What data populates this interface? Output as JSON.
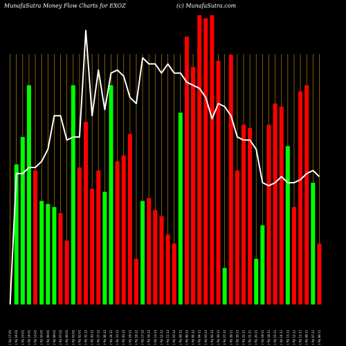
{
  "header": {
    "brand_left": "MunafaSutra  Money Flow  Charts for EXOZ",
    "brand_right": "(c) MunafaSutra.com"
  },
  "colors": {
    "background": "#000000",
    "up": "#00ff00",
    "down": "#ff0000",
    "line": "#ffffff",
    "gridline": "#b8860b"
  },
  "chart_data": {
    "type": "bar",
    "title": "",
    "xlabel": "",
    "ylabel": "",
    "ylim": [
      0,
      100
    ],
    "grid": "vertical",
    "categories": [
      "Fri 17 Jan 2025",
      "Thu 16 Jan 2025",
      "Wed 15 Jan 2025",
      "Tue 14 Jan 2025",
      "Mon 13 Jan 2025",
      "Fri 10 Jan 2025",
      "Thu 09 Jan 2025",
      "Wed 08 Jan 2025",
      "Tue 07 Jan 2025",
      "Mon 06 Jan 2025",
      "Fri 03 Jan 2025",
      "Thu 02 Jan 2025",
      "Tue 31 Dec 2024",
      "Mon 30 Dec 2024",
      "Fri 27 Dec 2024",
      "Thu 26 Dec 2024",
      "Tue 24 Dec 2024",
      "Mon 23 Dec 2024",
      "Fri 20 Dec 2024",
      "Thu 19 Dec 2024",
      "Wed 18 Dec 2024",
      "Tue 17 Dec 2024",
      "Mon 16 Dec 2024",
      "Fri 13 Dec 2024",
      "Thu 12 Dec 2024",
      "Wed 11 Dec 2024",
      "Tue 10 Dec 2024",
      "Mon 09 Dec 2024",
      "Fri 06 Dec 2024",
      "Thu 05 Dec 2024",
      "Wed 04 Dec 2024",
      "Tue 03 Dec 2024",
      "Mon 02 Dec 2024",
      "Fri 29 Nov 2024",
      "Wed 27 Nov 2024",
      "Tue 26 Nov 2024",
      "Mon 25 Nov 2024",
      "Fri 22 Nov 2024",
      "Thu 21 Nov 2024",
      "Wed 20 Nov 2024",
      "Tue 19 Nov 2024",
      "Mon 18 Nov 2024",
      "Fri 15 Nov 2024",
      "Thu 14 Nov 2024",
      "Wed 13 Nov 2024",
      "Tue 12 Nov 2024",
      "Mon 11 Nov 2024",
      "Fri 08 Nov 2024",
      "Thu 07 Nov 2024",
      "Wed 06 Nov 2024"
    ],
    "tick_labels": [
      "(-%) 17-01",
      "(-%) 16-01",
      "(-%) 15-01",
      "(-%) 14-01",
      "(-%) 13-01",
      "(-%) 10-01",
      "(-%) 09-01",
      "(-%) 08-01",
      "(-%) 07-01",
      "(-%) 06-01",
      "(-%) 03-01",
      "(-%) 02-01",
      "(-%) 31-12",
      "(-%) 30-12",
      "(-%) 27-12",
      "(-%) 26-12",
      "(-%) 24-12",
      "(-%) 23-12",
      "(-%) 20-12",
      "(-%) 19-12",
      "(-%) 18-12",
      "(-%) 17-12",
      "(-%) 16-12",
      "(-%) 13-12",
      "(-%) 12-12",
      "(-%) 11-12",
      "(-%) 10-12",
      "(-%) 09-12",
      "(-%) 06-12",
      "(-%) 05-12",
      "(-%) 04-12",
      "(-%) 03-12",
      "(-%) 02-12",
      "(-%) 29-11",
      "(-%) 27-11",
      "(-%) 26-11",
      "(-%) 25-11",
      "(-%) 22-11",
      "(-%) 21-11",
      "(-%) 20-11",
      "(-%) 19-11",
      "(-%) 18-11",
      "(-%) 15-11",
      "(-%) 14-11",
      "(-%) 13-11",
      "(-%) 12-11",
      "(-%) 11-11",
      "(-%) 08-11",
      "(-%) 07-11",
      "(-%) 06-11"
    ],
    "series": [
      {
        "kind": "bars",
        "values": [
          0,
          46,
          55,
          72,
          44,
          34,
          33,
          32,
          30,
          21,
          72,
          45,
          60,
          38,
          44,
          37,
          72,
          47,
          49,
          56,
          15,
          34,
          35,
          31,
          29,
          23,
          20,
          63,
          88,
          78,
          95,
          94,
          95,
          80,
          12,
          82,
          44,
          59,
          58,
          15,
          26,
          59,
          66,
          65,
          52,
          32,
          70,
          72,
          40,
          20
        ],
        "direction": [
          "up",
          "up",
          "up",
          "up",
          "down",
          "up",
          "up",
          "up",
          "down",
          "down",
          "up",
          "down",
          "down",
          "down",
          "down",
          "up",
          "up",
          "down",
          "down",
          "down",
          "down",
          "up",
          "down",
          "down",
          "down",
          "down",
          "down",
          "up",
          "down",
          "down",
          "down",
          "down",
          "down",
          "down",
          "up",
          "down",
          "down",
          "down",
          "down",
          "up",
          "up",
          "down",
          "down",
          "down",
          "up",
          "down",
          "down",
          "down",
          "up",
          "down"
        ]
      },
      {
        "kind": "line",
        "values": [
          0,
          43,
          43,
          45,
          45,
          47,
          51,
          62,
          62,
          54,
          55,
          55,
          90,
          62,
          77,
          64,
          76,
          77,
          75,
          68,
          66,
          81,
          79,
          79,
          76,
          79,
          76,
          76,
          73,
          72,
          71,
          68,
          61,
          66,
          65,
          62,
          55,
          54,
          54,
          51,
          40,
          39,
          40,
          42,
          40,
          40,
          41,
          43,
          44,
          42
        ]
      }
    ]
  }
}
